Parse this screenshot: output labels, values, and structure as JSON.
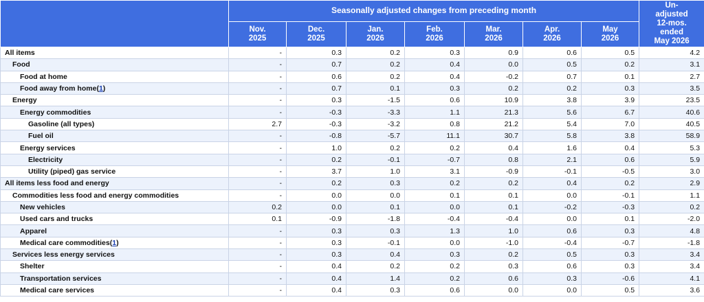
{
  "header": {
    "group_title": "Seasonally adjusted changes from preceding month",
    "months": [
      [
        "Nov.",
        "2025"
      ],
      [
        "Dec.",
        "2025"
      ],
      [
        "Jan.",
        "2026"
      ],
      [
        "Feb.",
        "2026"
      ],
      [
        "Mar.",
        "2026"
      ],
      [
        "Apr.",
        "2026"
      ],
      [
        "May",
        "2026"
      ]
    ],
    "unadjusted": [
      "Un-",
      "adjusted",
      "12-mos.",
      "ended",
      "May 2026"
    ]
  },
  "rows": [
    {
      "label": "All items",
      "level": 0,
      "values": [
        "-",
        "0.3",
        "0.2",
        "0.3",
        "0.9",
        "0.6",
        "0.5",
        "4.2"
      ]
    },
    {
      "label": "Food",
      "level": 1,
      "values": [
        "-",
        "0.7",
        "0.2",
        "0.4",
        "0.0",
        "0.5",
        "0.2",
        "3.1"
      ]
    },
    {
      "label": "Food at home",
      "level": 2,
      "values": [
        "-",
        "0.6",
        "0.2",
        "0.4",
        "-0.2",
        "0.7",
        "0.1",
        "2.7"
      ]
    },
    {
      "label": "Food away from home",
      "footnote": "1",
      "level": 2,
      "values": [
        "-",
        "0.7",
        "0.1",
        "0.3",
        "0.2",
        "0.2",
        "0.3",
        "3.5"
      ]
    },
    {
      "label": "Energy",
      "level": 1,
      "values": [
        "-",
        "0.3",
        "-1.5",
        "0.6",
        "10.9",
        "3.8",
        "3.9",
        "23.5"
      ]
    },
    {
      "label": "Energy commodities",
      "level": 2,
      "values": [
        "-",
        "-0.3",
        "-3.3",
        "1.1",
        "21.3",
        "5.6",
        "6.7",
        "40.6"
      ]
    },
    {
      "label": "Gasoline (all types)",
      "level": 3,
      "values": [
        "2.7",
        "-0.3",
        "-3.2",
        "0.8",
        "21.2",
        "5.4",
        "7.0",
        "40.5"
      ]
    },
    {
      "label": "Fuel oil",
      "level": 3,
      "values": [
        "-",
        "-0.8",
        "-5.7",
        "11.1",
        "30.7",
        "5.8",
        "3.8",
        "58.9"
      ]
    },
    {
      "label": "Energy services",
      "level": 2,
      "values": [
        "-",
        "1.0",
        "0.2",
        "0.2",
        "0.4",
        "1.6",
        "0.4",
        "5.3"
      ]
    },
    {
      "label": "Electricity",
      "level": 3,
      "values": [
        "-",
        "0.2",
        "-0.1",
        "-0.7",
        "0.8",
        "2.1",
        "0.6",
        "5.9"
      ]
    },
    {
      "label": "Utility (piped) gas service",
      "level": 3,
      "values": [
        "-",
        "3.7",
        "1.0",
        "3.1",
        "-0.9",
        "-0.1",
        "-0.5",
        "3.0"
      ]
    },
    {
      "label": "All items less food and energy",
      "level": 0,
      "values": [
        "-",
        "0.2",
        "0.3",
        "0.2",
        "0.2",
        "0.4",
        "0.2",
        "2.9"
      ]
    },
    {
      "label": "Commodities less food and energy commodities",
      "level": 1,
      "values": [
        "-",
        "0.0",
        "0.0",
        "0.1",
        "0.1",
        "0.0",
        "-0.1",
        "1.1"
      ]
    },
    {
      "label": "New vehicles",
      "level": 2,
      "values": [
        "0.2",
        "0.0",
        "0.1",
        "0.0",
        "0.1",
        "-0.2",
        "-0.3",
        "0.2"
      ]
    },
    {
      "label": "Used cars and trucks",
      "level": 2,
      "values": [
        "0.1",
        "-0.9",
        "-1.8",
        "-0.4",
        "-0.4",
        "0.0",
        "0.1",
        "-2.0"
      ]
    },
    {
      "label": "Apparel",
      "level": 2,
      "values": [
        "-",
        "0.3",
        "0.3",
        "1.3",
        "1.0",
        "0.6",
        "0.3",
        "4.8"
      ]
    },
    {
      "label": "Medical care commodities",
      "footnote": "1",
      "level": 2,
      "values": [
        "-",
        "0.3",
        "-0.1",
        "0.0",
        "-1.0",
        "-0.4",
        "-0.7",
        "-1.8"
      ]
    },
    {
      "label": "Services less energy services",
      "level": 1,
      "values": [
        "-",
        "0.3",
        "0.4",
        "0.3",
        "0.2",
        "0.5",
        "0.3",
        "3.4"
      ]
    },
    {
      "label": "Shelter",
      "level": 2,
      "values": [
        "-",
        "0.4",
        "0.2",
        "0.2",
        "0.3",
        "0.6",
        "0.3",
        "3.4"
      ]
    },
    {
      "label": "Transportation services",
      "level": 2,
      "values": [
        "-",
        "0.4",
        "1.4",
        "0.2",
        "0.6",
        "0.3",
        "-0.6",
        "4.1"
      ]
    },
    {
      "label": "Medical care services",
      "level": 2,
      "values": [
        "-",
        "0.4",
        "0.3",
        "0.6",
        "0.0",
        "0.0",
        "0.5",
        "3.6"
      ]
    }
  ]
}
